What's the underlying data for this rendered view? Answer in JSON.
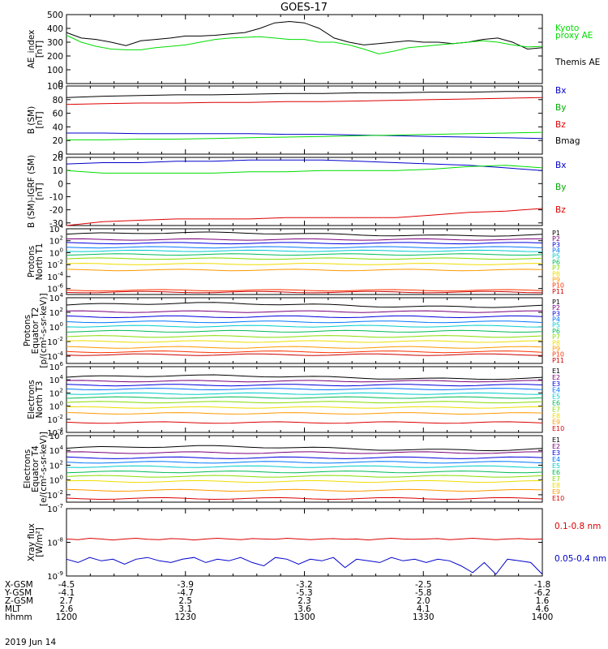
{
  "title": "GOES-17",
  "date_label": "2019 Jun 14",
  "colors": {
    "black": "#000000",
    "green": "#00dd00",
    "blue": "#0000cc",
    "red": "#dd0000",
    "P": [
      "#000000",
      "#7a007a",
      "#0000dd",
      "#0077ff",
      "#00cccc",
      "#00bb55",
      "#88dd00",
      "#eedd00",
      "#ff9900",
      "#ff3300",
      "#cc0000"
    ],
    "E": [
      "#000000",
      "#7a007a",
      "#0000dd",
      "#0077ff",
      "#00cccc",
      "#00bb55",
      "#88dd00",
      "#eedd00",
      "#ff9900",
      "#dd0000"
    ]
  },
  "x_axis": {
    "ticks": [
      "1200",
      "1230",
      "1300",
      "1330",
      "1400"
    ],
    "rows": [
      {
        "label": "X-GSM",
        "values": [
          "-4.5",
          "-3.9",
          "-3.2",
          "-2.5",
          "-1.8"
        ]
      },
      {
        "label": "Y-GSM",
        "values": [
          "-4.1",
          "-4.7",
          "-5.3",
          "-5.8",
          "-6.2"
        ]
      },
      {
        "label": "Z-GSM",
        "values": [
          "2.7",
          "2.5",
          "2.3",
          "2.0",
          "1.6"
        ]
      },
      {
        "label": "MLT",
        "values": [
          "2.6",
          "3.1",
          "3.6",
          "4.1",
          "4.6"
        ]
      },
      {
        "label": "hhmm",
        "values": [
          "1200",
          "1230",
          "1300",
          "1330",
          "1400"
        ]
      }
    ]
  },
  "chart_data": [
    {
      "type": "line",
      "ylabel": [
        "AE_index",
        "[nT]"
      ],
      "ylim": [
        0,
        500
      ],
      "yticks": [
        "0",
        "100",
        "200",
        "300",
        "400",
        "500"
      ],
      "legend": [
        {
          "text": "Kyoto",
          "color": "#00dd00"
        },
        {
          "text": "proxy AE",
          "color": "#00dd00"
        },
        {
          "text": "Themis AE",
          "color": "#000000"
        }
      ],
      "series": [
        {
          "color": "#000000",
          "values": [
            370,
            330,
            320,
            300,
            275,
            310,
            320,
            330,
            345,
            345,
            350,
            360,
            370,
            400,
            440,
            450,
            440,
            400,
            330,
            300,
            280,
            290,
            300,
            310,
            300,
            300,
            290,
            300,
            320,
            330,
            300,
            250,
            260
          ]
        },
        {
          "color": "#00dd00",
          "values": [
            350,
            300,
            270,
            250,
            245,
            245,
            260,
            270,
            280,
            300,
            320,
            330,
            335,
            340,
            330,
            320,
            320,
            300,
            300,
            280,
            250,
            215,
            235,
            260,
            270,
            280,
            290,
            300,
            310,
            300,
            280,
            265,
            270
          ]
        }
      ]
    },
    {
      "type": "line",
      "ylabel": [
        "B (SM)",
        "[nT]"
      ],
      "ylim": [
        0,
        100
      ],
      "yticks": [
        "0",
        "20",
        "40",
        "60",
        "80",
        "100"
      ],
      "legend": [
        {
          "text": "Bx",
          "color": "#0000cc"
        },
        {
          "text": "By",
          "color": "#00aa00"
        },
        {
          "text": "Bz",
          "color": "#dd0000"
        },
        {
          "text": "Bmag",
          "color": "#000000"
        }
      ],
      "series": [
        {
          "color": "#000000",
          "values": [
            83,
            85,
            86,
            87,
            87,
            88,
            89,
            89,
            90,
            90,
            91,
            91,
            92,
            92
          ]
        },
        {
          "color": "#dd0000",
          "values": [
            73,
            74,
            75,
            75,
            76,
            76,
            77,
            77,
            78,
            79,
            80,
            81,
            82,
            83
          ]
        },
        {
          "color": "#0000cc",
          "values": [
            31,
            31,
            30,
            30,
            30,
            30,
            29,
            29,
            28,
            27,
            26,
            25,
            24,
            23
          ]
        },
        {
          "color": "#00dd00",
          "values": [
            21,
            21,
            22,
            22,
            23,
            24,
            25,
            26,
            27,
            28,
            29,
            30,
            31,
            32
          ]
        }
      ]
    },
    {
      "type": "line",
      "ylabel": [
        "B (SM)-IGRF (SM)",
        "[nT]"
      ],
      "ylim": [
        -32,
        20
      ],
      "yticks": [
        "-30",
        "-20",
        "-10",
        "0",
        "10",
        "20"
      ],
      "ytick_values": [
        -30,
        -20,
        -10,
        0,
        10,
        20
      ],
      "legend": [
        {
          "text": "Bx",
          "color": "#0000cc"
        },
        {
          "text": "By",
          "color": "#00aa00"
        },
        {
          "text": "Bz",
          "color": "#dd0000"
        }
      ],
      "series": [
        {
          "color": "#0000cc",
          "values": [
            15,
            16,
            16,
            17,
            17,
            18,
            18,
            18,
            17,
            16,
            15,
            14,
            12,
            10
          ]
        },
        {
          "color": "#00dd00",
          "values": [
            10,
            8,
            8,
            8,
            8,
            9,
            9,
            10,
            10,
            10,
            11,
            13,
            14,
            12
          ]
        },
        {
          "color": "#dd0000",
          "values": [
            -32,
            -29,
            -28,
            -27,
            -27,
            -27,
            -26,
            -26,
            -26,
            -26,
            -24,
            -22,
            -21,
            -19
          ]
        }
      ]
    },
    {
      "type": "line",
      "log_scale": true,
      "ylabel": [
        "Protons",
        "North T1"
      ],
      "ylim_exp": [
        -7,
        4
      ],
      "yticks_exp": [
        -6,
        -4,
        -2,
        0,
        2,
        4
      ],
      "legend_labels": [
        "P1",
        "P2",
        "P3",
        "P4",
        "P5",
        "P6",
        "P7",
        "P8",
        "P9",
        "P10",
        "P11"
      ],
      "series_levels": [
        3.1,
        2.2,
        1.6,
        0.9,
        0.3,
        -0.3,
        -1.0,
        -1.9,
        -2.9,
        -6.3,
        -6.6
      ]
    },
    {
      "type": "line",
      "log_scale": true,
      "ylabel": [
        "Protons",
        "Equator T2",
        "[p/(cm²-s-sr-keV)]"
      ],
      "ylim_exp": [
        -5,
        4
      ],
      "yticks_exp": [
        -4,
        -2,
        0,
        2,
        4
      ],
      "legend_labels": [
        "P1",
        "P2",
        "P3",
        "P4",
        "P5",
        "P6",
        "P7",
        "P8",
        "P9",
        "P10",
        "P11"
      ],
      "series_levels": [
        3.0,
        2.1,
        1.4,
        0.7,
        0.1,
        -0.6,
        -1.3,
        -2.0,
        -2.8,
        -3.4,
        -3.8
      ]
    },
    {
      "type": "line",
      "log_scale": true,
      "ylabel": [
        "Electrons",
        "North T3"
      ],
      "ylim_exp": [
        -4,
        6
      ],
      "yticks_exp": [
        -4,
        -2,
        0,
        2,
        4,
        6
      ],
      "legend_labels": [
        "E1",
        "E2",
        "E3",
        "E4",
        "E5",
        "E6",
        "E7",
        "E8",
        "E9",
        "E10"
      ],
      "series_levels": [
        4.4,
        3.8,
        3.2,
        2.6,
        1.9,
        1.3,
        0.6,
        -0.2,
        -1.1,
        -2.5
      ]
    },
    {
      "type": "line",
      "log_scale": true,
      "ylabel": [
        "Electrons",
        "Equator T4",
        "[e/(cm²-s-sr-keV)]"
      ],
      "ylim_exp": [
        -3,
        6
      ],
      "yticks_exp": [
        -2,
        0,
        2,
        4,
        6
      ],
      "legend_labels": [
        "E1",
        "E2",
        "E3",
        "E4",
        "E5",
        "E6",
        "E7",
        "E8",
        "E9",
        "E10"
      ],
      "series_levels": [
        4.3,
        3.7,
        3.0,
        2.4,
        1.8,
        1.1,
        0.5,
        -0.2,
        -1.4,
        -2.5
      ]
    },
    {
      "type": "line",
      "log_scale": true,
      "ylabel": [
        "Xray flux",
        "[W/m²]"
      ],
      "ylim_exp": [
        -9,
        -7
      ],
      "yticks_exp": [
        -9,
        -8,
        -7
      ],
      "legend": [
        {
          "text": "0.1-0.8 nm",
          "color": "#dd0000"
        },
        {
          "text": "0.05-0.4 nm",
          "color": "#0000cc"
        }
      ],
      "series": [
        {
          "color": "#dd0000",
          "values": [
            -7.9,
            -7.92,
            -7.88,
            -7.9,
            -7.93,
            -7.9,
            -7.88,
            -7.91,
            -7.92,
            -7.89,
            -7.9,
            -7.93,
            -7.9,
            -7.88,
            -7.9,
            -7.92,
            -7.89,
            -7.9,
            -7.91,
            -7.88,
            -7.9,
            -7.92,
            -7.9,
            -7.89,
            -7.91,
            -7.9,
            -7.93,
            -7.9,
            -7.88,
            -7.9,
            -7.91,
            -7.9,
            -7.89,
            -7.92,
            -7.9,
            -7.88,
            -7.9,
            -7.92,
            -7.9,
            -7.89,
            -7.91,
            -7.9
          ]
        },
        {
          "color": "#0000cc",
          "values": [
            -8.5,
            -8.6,
            -8.45,
            -8.55,
            -8.5,
            -8.65,
            -8.5,
            -8.45,
            -8.55,
            -8.6,
            -8.5,
            -8.45,
            -8.6,
            -8.5,
            -8.55,
            -8.45,
            -8.6,
            -8.7,
            -8.45,
            -8.5,
            -8.65,
            -8.5,
            -8.55,
            -8.45,
            -8.75,
            -8.5,
            -8.55,
            -8.6,
            -8.45,
            -8.55,
            -8.5,
            -8.6,
            -8.5,
            -8.55,
            -8.7,
            -8.9,
            -8.6,
            -8.95,
            -8.5,
            -8.55,
            -8.6,
            -8.95
          ]
        }
      ]
    }
  ]
}
